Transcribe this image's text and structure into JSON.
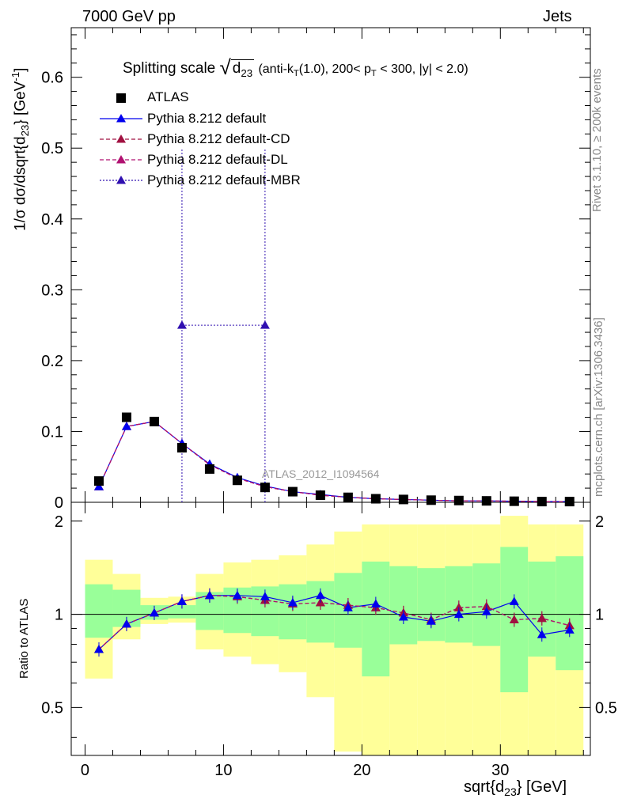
{
  "header": {
    "left": "7000 GeV pp",
    "right": "Jets"
  },
  "side_labels": {
    "rivet": "Rivet 3.1.10, ≥ 200k events",
    "mcplots": "mcplots.cern.ch [arXiv:1306.3436]"
  },
  "title": {
    "prefix": "Splitting scale",
    "var": "d",
    "var_sub": "23",
    "cuts_a": "(anti-k",
    "cuts_b": "T",
    "cuts_c": "(1.0), 200< p",
    "cuts_d": "T",
    "cuts_e": " < 300, |y| < 2.0)"
  },
  "analysis_label": "ATLAS_2012_I1094564",
  "axes": {
    "ylabel_main_a": "1/σ dσ/dsqrt{d",
    "ylabel_main_sub": "23",
    "ylabel_main_b": "} [GeV",
    "ylabel_main_sup": "-1",
    "ylabel_main_c": "]",
    "ylabel_ratio": "Ratio to ATLAS",
    "xlabel_a": "sqrt{d",
    "xlabel_sub": "23",
    "xlabel_b": "} [GeV]"
  },
  "legend": [
    {
      "label": "ATLAS"
    },
    {
      "label": "Pythia 8.212 default"
    },
    {
      "label": "Pythia 8.212 default-CD"
    },
    {
      "label": "Pythia 8.212 default-DL"
    },
    {
      "label": "Pythia 8.212 default-MBR"
    }
  ],
  "colors": {
    "atlas": "#000000",
    "default": "#0000ee",
    "cd": "#a01040",
    "dl": "#b01070",
    "mbr": "#3010b0",
    "band_inner": "#99ff99",
    "band_outer": "#ffff99"
  },
  "chart_data": [
    {
      "type": "line",
      "panel": "main",
      "xlim": [
        -1,
        36.5
      ],
      "ylim": [
        0,
        0.67
      ],
      "x_ticks": [
        0,
        10,
        20,
        30
      ],
      "y_ticks": [
        0,
        0.1,
        0.2,
        0.3,
        0.4,
        0.5,
        0.6
      ],
      "y_tick_labels": [
        "0",
        "0.1",
        "0.2",
        "0.3",
        "0.4",
        "0.5",
        "0.6"
      ],
      "bin_edges": [
        0,
        2,
        4,
        6,
        8,
        10,
        12,
        14,
        16,
        18,
        20,
        22,
        24,
        26,
        28,
        30,
        32,
        34,
        36
      ],
      "x": [
        1,
        3,
        5,
        7,
        9,
        11,
        13,
        15,
        17,
        19,
        21,
        23,
        25,
        27,
        29,
        31,
        33,
        35
      ],
      "series": [
        {
          "name": "ATLAS",
          "style": "markers",
          "values": [
            0.03,
            0.12,
            0.114,
            0.077,
            0.047,
            0.031,
            0.021,
            0.015,
            0.01,
            0.007,
            0.005,
            0.004,
            0.003,
            0.0025,
            0.002,
            0.0015,
            0.001,
            0.001
          ]
        },
        {
          "name": "Pythia 8.212 default",
          "style": "solid",
          "values": [
            0.022,
            0.107,
            0.114,
            0.083,
            0.054,
            0.035,
            0.023,
            0.015,
            0.011,
            0.007,
            0.005,
            0.004,
            0.003,
            0.002,
            0.002,
            0.0015,
            0.001,
            0.001
          ]
        },
        {
          "name": "Pythia 8.212 default-CD",
          "style": "dashed",
          "values": [
            0.022,
            0.107,
            0.114,
            0.083,
            0.053,
            0.034,
            0.022,
            0.015,
            0.01,
            0.007,
            0.005,
            0.004,
            0.003,
            0.002,
            0.002,
            0.0015,
            0.001,
            0.001
          ]
        },
        {
          "name": "Pythia 8.212 default-DL",
          "style": "dashed",
          "values": [
            0.022,
            0.107,
            0.114,
            0.083,
            0.053,
            0.034,
            0.022,
            0.015,
            0.01,
            0.007,
            0.005,
            0.004,
            0.003,
            0.002,
            0.002,
            0.0015,
            0.001,
            0.001
          ]
        },
        {
          "name": "Pythia 8.212 default-MBR",
          "style": "dotted",
          "x": [
            7,
            13
          ],
          "values": [
            0.25,
            0.25
          ],
          "bar_x": [
            7,
            13
          ],
          "bar_y": [
            0,
            0.5
          ]
        }
      ]
    },
    {
      "type": "line",
      "panel": "ratio",
      "xlim": [
        -1,
        36.5
      ],
      "ylim": [
        0.35,
        2.3
      ],
      "x_ticks": [
        0,
        10,
        20,
        30
      ],
      "x_tick_labels": [
        "0",
        "10",
        "20",
        "30"
      ],
      "y_ticks": [
        0.5,
        1,
        2
      ],
      "y_tick_labels": [
        "0.5",
        "1",
        "2"
      ],
      "bin_edges": [
        0,
        2,
        4,
        6,
        8,
        10,
        12,
        14,
        16,
        18,
        20,
        22,
        24,
        26,
        28,
        30,
        32,
        34,
        36
      ],
      "band_inner_low": [
        0.84,
        0.91,
        0.96,
        0.97,
        0.89,
        0.87,
        0.85,
        0.83,
        0.81,
        0.78,
        0.63,
        0.8,
        0.82,
        0.81,
        0.79,
        0.56,
        0.73,
        0.66
      ],
      "band_inner_high": [
        1.25,
        1.2,
        1.07,
        1.07,
        1.18,
        1.22,
        1.23,
        1.25,
        1.28,
        1.36,
        1.48,
        1.43,
        1.41,
        1.43,
        1.46,
        1.65,
        1.48,
        1.54
      ],
      "band_outer_low": [
        0.62,
        0.83,
        0.93,
        0.94,
        0.77,
        0.73,
        0.69,
        0.65,
        0.54,
        0.36,
        0.3,
        0.3,
        0.3,
        0.3,
        0.3,
        0.3,
        0.3,
        0.3
      ],
      "band_outer_high": [
        1.5,
        1.35,
        1.13,
        1.14,
        1.35,
        1.47,
        1.5,
        1.55,
        1.68,
        1.85,
        1.95,
        1.95,
        1.95,
        1.95,
        1.95,
        2.08,
        1.95,
        1.95
      ],
      "x": [
        1,
        3,
        5,
        7,
        9,
        11,
        13,
        15,
        17,
        19,
        21,
        23,
        25,
        27,
        29,
        31,
        33,
        35
      ],
      "series": [
        {
          "name": "Pythia 8.212 default",
          "style": "solid",
          "values": [
            0.77,
            0.93,
            1.01,
            1.1,
            1.15,
            1.15,
            1.14,
            1.09,
            1.15,
            1.05,
            1.08,
            0.98,
            0.95,
            1.0,
            1.02,
            1.1,
            0.86,
            0.89
          ]
        },
        {
          "name": "Pythia 8.212 default-CD",
          "style": "dashed",
          "values": [
            0.77,
            0.93,
            1.01,
            1.1,
            1.15,
            1.14,
            1.11,
            1.08,
            1.09,
            1.07,
            1.05,
            1.01,
            0.96,
            1.05,
            1.06,
            0.96,
            0.97,
            0.92
          ]
        },
        {
          "name": "Pythia 8.212 default-DL",
          "style": "dashed",
          "values": [
            0.77,
            0.93,
            1.01,
            1.1,
            1.15,
            1.14,
            1.11,
            1.08,
            1.09,
            1.07,
            1.05,
            1.01,
            0.96,
            1.05,
            1.06,
            0.96,
            0.97,
            0.92
          ]
        }
      ]
    }
  ]
}
